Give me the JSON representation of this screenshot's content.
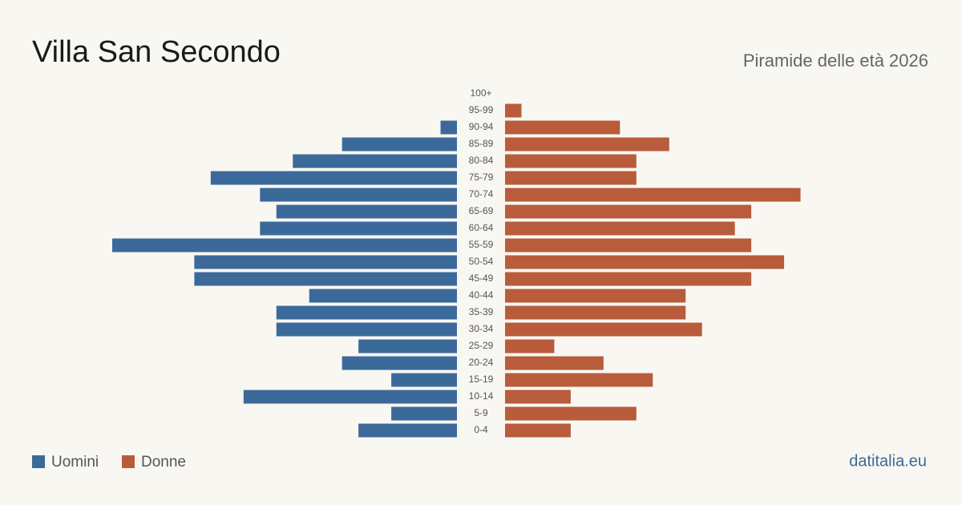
{
  "chart_data": {
    "type": "pyramid",
    "title": "Villa San Secondo",
    "subtitle": "Piramide delle età 2026",
    "categories": [
      "100+",
      "95-99",
      "90-94",
      "85-89",
      "80-84",
      "75-79",
      "70-74",
      "65-69",
      "60-64",
      "55-59",
      "50-54",
      "45-49",
      "40-44",
      "35-39",
      "30-34",
      "25-29",
      "20-24",
      "15-19",
      "10-14",
      "5-9",
      "0-4"
    ],
    "series": [
      {
        "name": "Uomini",
        "color": "#3b6a9a",
        "values": [
          0,
          0,
          1,
          7,
          10,
          15,
          12,
          11,
          12,
          21,
          16,
          16,
          9,
          11,
          11,
          6,
          7,
          4,
          13,
          4,
          6
        ]
      },
      {
        "name": "Donne",
        "color": "#b85c3c",
        "values": [
          0,
          1,
          7,
          10,
          8,
          8,
          18,
          15,
          14,
          15,
          17,
          15,
          11,
          11,
          12,
          3,
          6,
          9,
          4,
          8,
          4
        ]
      }
    ],
    "source": "datitalia.eu"
  }
}
